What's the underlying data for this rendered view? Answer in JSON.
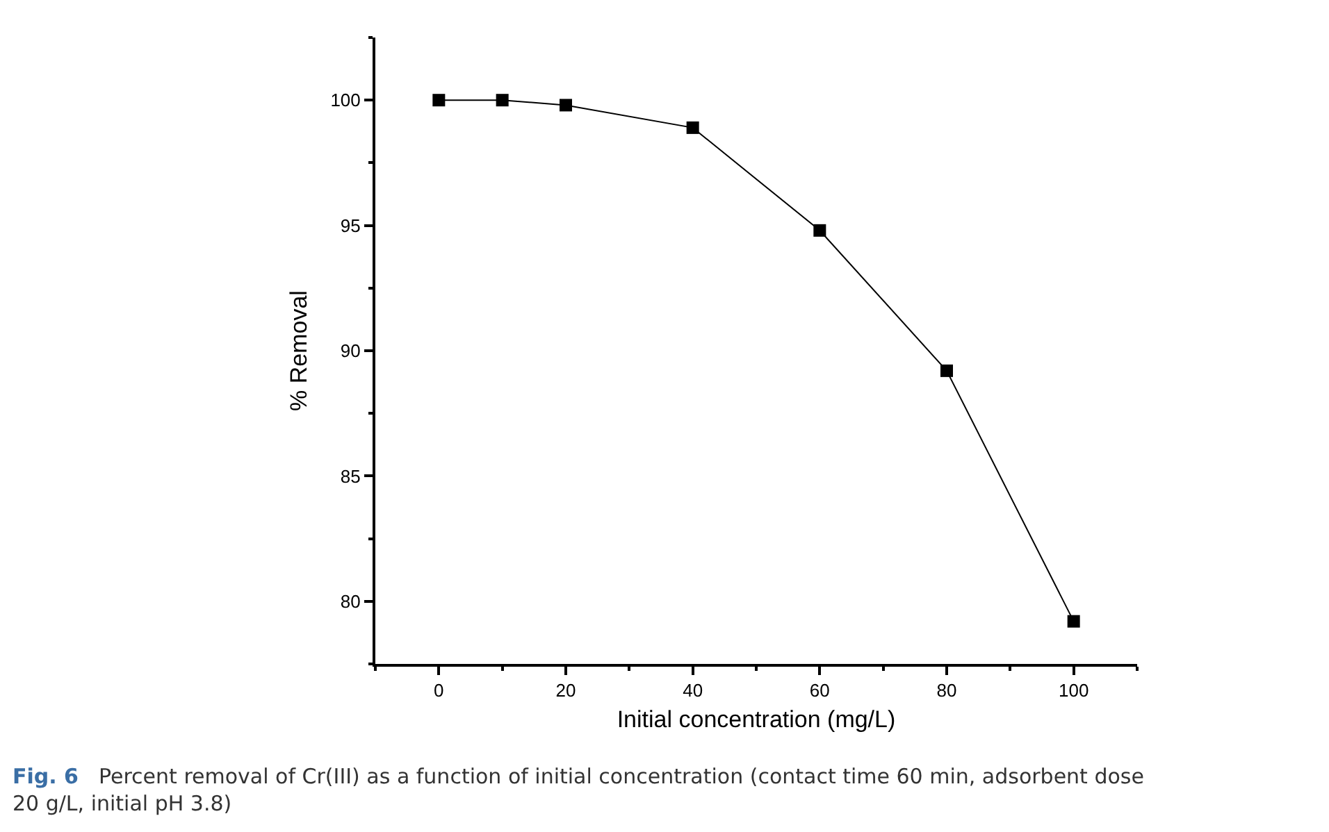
{
  "chart_data": {
    "type": "line",
    "xlabel": "Initial concentration (mg/L)",
    "ylabel": "% Removal",
    "x": [
      0,
      10,
      20,
      40,
      60,
      80,
      100
    ],
    "series": [
      {
        "color": "#000000",
        "values": [
          100,
          100,
          99.8,
          98.9,
          94.8,
          89.2,
          79.2
        ]
      }
    ],
    "marker": "square",
    "line_style": "solid",
    "xlim": [
      -10,
      110
    ],
    "xticks": [
      0,
      20,
      40,
      60,
      80,
      100
    ],
    "ylim": [
      77.5,
      102.5
    ],
    "yticks": [
      80,
      85,
      90,
      95,
      100
    ],
    "annotations": [
      "Fig. 6",
      "Percent removal of Cr(III) as a function of initial concentration (contact time 60 min, adsorbent dose\n20 g/L, initial pH 3.8)"
    ]
  }
}
